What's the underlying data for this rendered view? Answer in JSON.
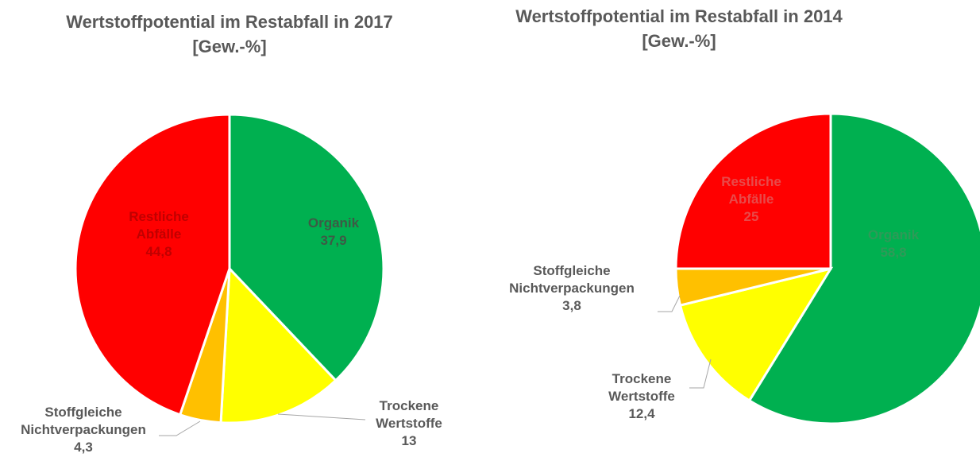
{
  "chart_data": [
    {
      "type": "pie",
      "title": "Wertstoffpotential im Restabfall in 2017",
      "subtitle": "[Gew.-%]",
      "categories": [
        "Organik",
        "Trockene Wertstoffe",
        "Stoffgleiche Nichtverpackungen",
        "Restliche Abfälle"
      ],
      "values": [
        37.9,
        13,
        4.3,
        44.8
      ],
      "value_labels": [
        "37,9",
        "13",
        "4,3",
        "44,8"
      ],
      "colors": [
        "#00b050",
        "#ffff00",
        "#ffc000",
        "#ff0000"
      ]
    },
    {
      "type": "pie",
      "title": "Wertstoffpotential im Restabfall in 2014",
      "subtitle": "[Gew.-%]",
      "categories": [
        "Organik",
        "Trockene Wertstoffe",
        "Stoffgleiche Nichtverpackungen",
        "Restliche Abfälle"
      ],
      "values": [
        58.8,
        12.4,
        3.8,
        25
      ],
      "value_labels": [
        "58,8",
        "12,4",
        "3,8",
        "25"
      ],
      "colors": [
        "#00b050",
        "#ffff00",
        "#ffc000",
        "#ff0000"
      ]
    }
  ]
}
